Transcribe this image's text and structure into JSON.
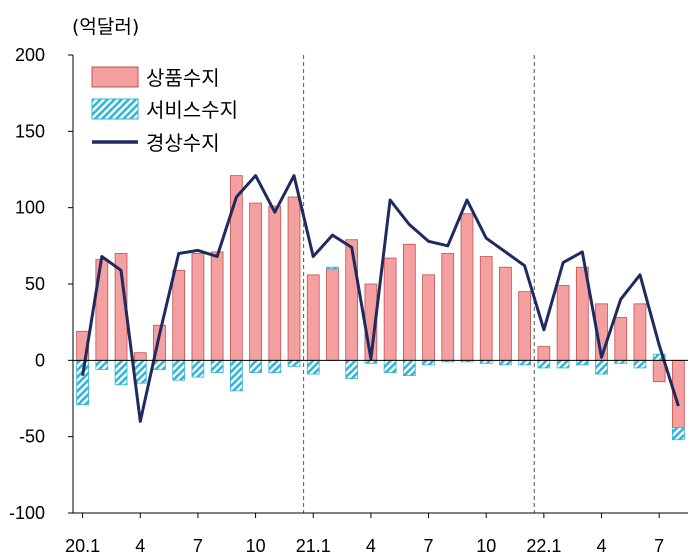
{
  "unit_label": "(억달러)",
  "colors": {
    "goods": "#F4A0A0",
    "goods_stroke": "#C0504D",
    "services": "#31B5D8",
    "current": "#1F2A5E"
  },
  "chart_data": {
    "type": "bar",
    "unit": "(억달러)",
    "ylim": [
      -100,
      200
    ],
    "yticks": [
      200,
      150,
      100,
      50,
      0,
      -50,
      -100
    ],
    "x_tick_labels": [
      {
        "index": 0,
        "label": "20.1"
      },
      {
        "index": 3,
        "label": "4"
      },
      {
        "index": 6,
        "label": "7"
      },
      {
        "index": 9,
        "label": "10"
      },
      {
        "index": 12,
        "label": "21.1"
      },
      {
        "index": 15,
        "label": "4"
      },
      {
        "index": 18,
        "label": "7"
      },
      {
        "index": 21,
        "label": "10"
      },
      {
        "index": 24,
        "label": "22.1"
      },
      {
        "index": 27,
        "label": "4"
      },
      {
        "index": 30,
        "label": "7"
      }
    ],
    "year_dividers_after_index": [
      11,
      23
    ],
    "categories": [
      "20.1",
      "20.2",
      "20.3",
      "20.4",
      "20.5",
      "20.6",
      "20.7",
      "20.8",
      "20.9",
      "20.10",
      "20.11",
      "20.12",
      "21.1",
      "21.2",
      "21.3",
      "21.4",
      "21.5",
      "21.6",
      "21.7",
      "21.8",
      "21.9",
      "21.10",
      "21.11",
      "21.12",
      "22.1",
      "22.2",
      "22.3",
      "22.4",
      "22.5",
      "22.6",
      "22.7",
      "22.8"
    ],
    "legend": [
      "상품수지",
      "서비스수지",
      "경상수지"
    ],
    "legend_position": "top-left",
    "series": [
      {
        "name": "상품수지",
        "type": "bar",
        "values": [
          19,
          66,
          70,
          5,
          23,
          59,
          70,
          71,
          121,
          103,
          101,
          107,
          56,
          60,
          79,
          50,
          67,
          76,
          56,
          70,
          96,
          68,
          61,
          45,
          9,
          49,
          61,
          37,
          28,
          37,
          -14,
          -44
        ]
      },
      {
        "name": "서비스수지",
        "type": "bar",
        "values": [
          -29,
          -6,
          -16,
          -15,
          -6,
          -13,
          -11,
          -8,
          -20,
          -8,
          -8,
          -4,
          -9,
          1,
          -12,
          -2,
          -8,
          -10,
          -3,
          -1,
          -1,
          -2,
          -3,
          -3,
          -5,
          -5,
          -3,
          -9,
          -2,
          -5,
          4,
          -8
        ]
      },
      {
        "name": "경상수지",
        "type": "line",
        "values": [
          -10,
          68,
          59,
          -40,
          17,
          70,
          72,
          68,
          107,
          121,
          97,
          121,
          68,
          82,
          74,
          1,
          105,
          89,
          78,
          75,
          105,
          80,
          71,
          62,
          20,
          64,
          71,
          2,
          40,
          56,
          10,
          -30
        ]
      }
    ]
  }
}
